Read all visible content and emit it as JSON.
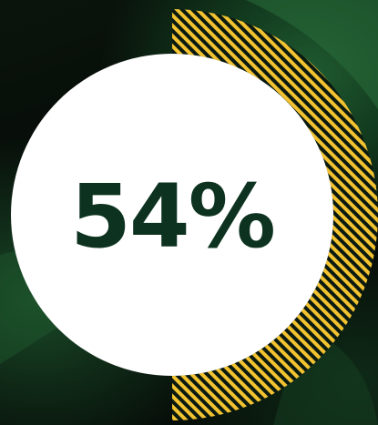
{
  "stat": {
    "value": 54,
    "label": "54%"
  },
  "colors": {
    "background": "#050806",
    "photo_green": "#1f5a30",
    "ring_stripe": "#f2c230",
    "ring_gap": "#0b1a10",
    "circle": "#ffffff",
    "value_text": "#0d3320"
  },
  "icons": {
    "background": "dark-green-leaf-photo",
    "ring": "hatched-half-ring"
  }
}
